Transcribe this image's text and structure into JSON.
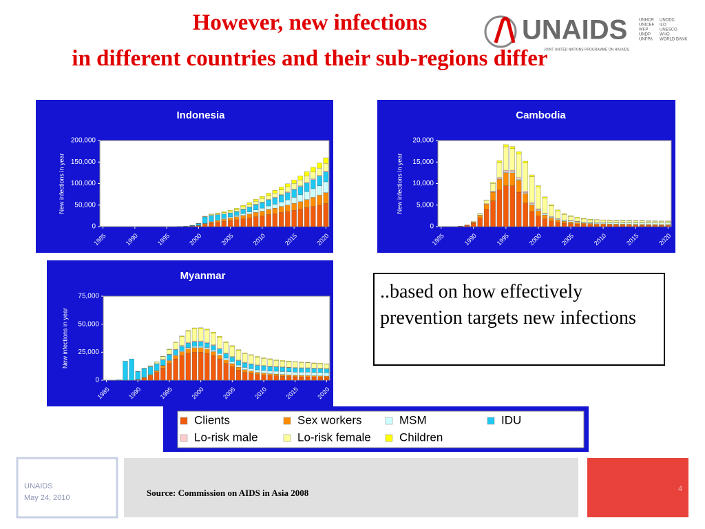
{
  "header": {
    "title_line1": "However, new infections",
    "title_line2": "in different countries and their sub-regions differ",
    "logo": "UNAIDS",
    "logo_sub": "JOINT UNITED NATIONS PROGRAMME ON HIV/AIDS",
    "cosponsors_1": [
      "UNHCR",
      "UNICEF",
      "WFP",
      "UNDP",
      "UNFPA"
    ],
    "cosponsors_2": [
      "UNODC",
      "ILO",
      "UNESCO",
      "WHO",
      "WORLD BANK"
    ]
  },
  "note": "..based on how effectively prevention targets new infections",
  "footer": {
    "org": "UNAIDS",
    "date": "May 24, 2010",
    "source": "Source: Commission on AIDS in Asia 2008",
    "page": "4"
  },
  "chart_data": [
    {
      "type": "stacked_bar",
      "title": "Indonesia",
      "ylabel": "New infections in year",
      "panel_color": "#1414d2",
      "x": [
        1985,
        1986,
        1987,
        1988,
        1989,
        1990,
        1991,
        1992,
        1993,
        1994,
        1995,
        1996,
        1997,
        1998,
        1999,
        2000,
        2001,
        2002,
        2003,
        2004,
        2005,
        2006,
        2007,
        2008,
        2009,
        2010,
        2011,
        2012,
        2013,
        2014,
        2015,
        2016,
        2017,
        2018,
        2019,
        2020
      ],
      "xticks": [
        1985,
        1990,
        1995,
        2000,
        2005,
        2010,
        2015,
        2020
      ],
      "ylim": [
        0,
        200000
      ],
      "yticks": [
        {
          "value": 0,
          "label": "0"
        },
        {
          "value": 50000,
          "label": "50,000"
        },
        {
          "value": 100000,
          "label": "100,000"
        },
        {
          "value": 150000,
          "label": "150,000"
        },
        {
          "value": 200000,
          "label": "200,000"
        }
      ],
      "series": [
        {
          "name": "Clients",
          "color": "#f05a0a",
          "values": [
            0,
            0,
            0,
            0,
            0,
            0,
            0,
            0,
            0,
            0,
            0,
            0,
            200,
            500,
            1000,
            2000,
            5000,
            8000,
            10000,
            12000,
            14000,
            16000,
            18000,
            20000,
            23000,
            25000,
            28000,
            30000,
            33000,
            35000,
            38000,
            41000,
            44000,
            47000,
            50000,
            54000
          ]
        },
        {
          "name": "Sex workers",
          "color": "#ff8c00",
          "values": [
            0,
            0,
            0,
            0,
            0,
            0,
            0,
            0,
            0,
            0,
            0,
            0,
            100,
            200,
            500,
            1000,
            2000,
            3000,
            4000,
            5000,
            6000,
            7000,
            8000,
            9000,
            10000,
            11000,
            12000,
            13000,
            14000,
            15000,
            16000,
            17000,
            19000,
            21000,
            23000,
            25000
          ]
        },
        {
          "name": "MSM",
          "color": "#ccffff",
          "values": [
            0,
            0,
            0,
            0,
            0,
            0,
            0,
            0,
            0,
            0,
            0,
            0,
            0,
            0,
            100,
            200,
            500,
            1000,
            1500,
            2000,
            2500,
            3000,
            4000,
            5000,
            6000,
            7000,
            8000,
            9000,
            10000,
            12000,
            14000,
            16000,
            18000,
            20000,
            22000,
            25000
          ]
        },
        {
          "name": "IDU",
          "color": "#1ec8f0",
          "values": [
            0,
            0,
            0,
            0,
            0,
            0,
            0,
            0,
            0,
            0,
            0,
            0,
            100,
            500,
            1000,
            4000,
            15000,
            14000,
            12000,
            10000,
            9000,
            9000,
            10000,
            11000,
            12000,
            13000,
            14000,
            15000,
            16000,
            17000,
            18000,
            19000,
            20000,
            21000,
            22000,
            23000
          ]
        },
        {
          "name": "Lo-risk male",
          "color": "#ffcccc",
          "values": [
            0,
            0,
            0,
            0,
            0,
            0,
            0,
            0,
            0,
            0,
            0,
            0,
            0,
            0,
            0,
            0,
            100,
            200,
            300,
            400,
            500,
            600,
            700,
            800,
            900,
            1000,
            1100,
            1200,
            1300,
            1400,
            1500,
            1600,
            1700,
            1800,
            1900,
            2000
          ]
        },
        {
          "name": "Lo-risk female",
          "color": "#ffff99",
          "values": [
            0,
            0,
            0,
            0,
            0,
            0,
            0,
            0,
            0,
            0,
            0,
            0,
            0,
            0,
            100,
            300,
            1000,
            2000,
            2500,
            3000,
            3500,
            4000,
            5000,
            6000,
            7000,
            8000,
            9000,
            10000,
            11000,
            12000,
            13000,
            14000,
            15000,
            16000,
            17000,
            18000
          ]
        },
        {
          "name": "Children",
          "color": "#ffff00",
          "values": [
            0,
            0,
            0,
            0,
            0,
            0,
            0,
            0,
            0,
            0,
            0,
            0,
            0,
            0,
            0,
            100,
            500,
            1000,
            1500,
            2000,
            2500,
            3000,
            3500,
            4000,
            4500,
            5000,
            5500,
            6000,
            6500,
            7000,
            8000,
            9000,
            10000,
            11000,
            12000,
            13000
          ]
        }
      ]
    },
    {
      "type": "stacked_bar",
      "title": "Cambodia",
      "ylabel": "New infections in year",
      "panel_color": "#1414d2",
      "x": [
        1985,
        1986,
        1987,
        1988,
        1989,
        1990,
        1991,
        1992,
        1993,
        1994,
        1995,
        1996,
        1997,
        1998,
        1999,
        2000,
        2001,
        2002,
        2003,
        2004,
        2005,
        2006,
        2007,
        2008,
        2009,
        2010,
        2011,
        2012,
        2013,
        2014,
        2015,
        2016,
        2017,
        2018,
        2019,
        2020
      ],
      "xticks": [
        1985,
        1990,
        1995,
        2000,
        2005,
        2010,
        2015,
        2020
      ],
      "ylim": [
        0,
        20000
      ],
      "yticks": [
        {
          "value": 0,
          "label": "0"
        },
        {
          "value": 5000,
          "label": "5,000"
        },
        {
          "value": 10000,
          "label": "10,000"
        },
        {
          "value": 15000,
          "label": "15,000"
        },
        {
          "value": 20000,
          "label": "20,000"
        }
      ],
      "series": [
        {
          "values": [
            0,
            0,
            0,
            100,
            300,
            800,
            2000,
            4000,
            6000,
            8500,
            9500,
            9500,
            8000,
            5500,
            3500,
            2500,
            1800,
            1300,
            1000,
            800,
            700,
            600,
            500,
            450,
            400,
            400,
            380,
            370,
            360,
            350,
            340,
            330,
            320,
            310,
            300,
            300
          ]
        },
        {
          "values": [
            0,
            0,
            0,
            50,
            100,
            300,
            600,
            1200,
            2000,
            2500,
            3000,
            3000,
            2800,
            2200,
            1600,
            1200,
            900,
            700,
            550,
            450,
            400,
            350,
            300,
            280,
            260,
            250,
            240,
            230,
            220,
            210,
            200,
            200,
            190,
            190,
            180,
            180
          ]
        },
        {
          "values": [
            0,
            0,
            0,
            0,
            0,
            0,
            0,
            0,
            50,
            100,
            150,
            200,
            200,
            200,
            200,
            200,
            200,
            200,
            200,
            200,
            200,
            200,
            200,
            200,
            250,
            260,
            270,
            280,
            290,
            300,
            310,
            320,
            330,
            340,
            350,
            360
          ]
        },
        {
          "values": [
            0,
            0,
            0,
            0,
            0,
            0,
            0,
            0,
            0,
            0,
            0,
            0,
            0,
            0,
            0,
            0,
            0,
            0,
            0,
            0,
            0,
            0,
            0,
            0,
            0,
            0,
            0,
            0,
            0,
            0,
            0,
            0,
            0,
            0,
            0,
            0
          ]
        },
        {
          "values": [
            0,
            0,
            0,
            0,
            0,
            0,
            50,
            100,
            200,
            300,
            400,
            400,
            400,
            350,
            300,
            250,
            200,
            150,
            120,
            100,
            90,
            80,
            70,
            60,
            60,
            60,
            55,
            55,
            50,
            50,
            50,
            50,
            45,
            45,
            40,
            40
          ]
        },
        {
          "values": [
            0,
            0,
            0,
            0,
            0,
            100,
            300,
            800,
            1800,
            3500,
            5500,
            5000,
            5500,
            6500,
            6000,
            5000,
            3500,
            2500,
            1800,
            1300,
            1000,
            800,
            700,
            600,
            550,
            500,
            480,
            460,
            440,
            420,
            400,
            400,
            390,
            380,
            370,
            360
          ]
        },
        {
          "values": [
            0,
            0,
            0,
            0,
            0,
            0,
            50,
            100,
            200,
            400,
            500,
            500,
            500,
            450,
            400,
            350,
            300,
            250,
            200,
            180,
            160,
            150,
            140,
            130,
            120,
            110,
            100,
            100,
            90,
            90,
            80,
            80,
            70,
            70,
            60,
            60
          ]
        }
      ]
    },
    {
      "type": "stacked_bar",
      "title": "Myanmar",
      "ylabel": "New infections in year",
      "panel_color": "#1414d2",
      "x": [
        1985,
        1986,
        1987,
        1988,
        1989,
        1990,
        1991,
        1992,
        1993,
        1994,
        1995,
        1996,
        1997,
        1998,
        1999,
        2000,
        2001,
        2002,
        2003,
        2004,
        2005,
        2006,
        2007,
        2008,
        2009,
        2010,
        2011,
        2012,
        2013,
        2014,
        2015,
        2016,
        2017,
        2018,
        2019,
        2020
      ],
      "xticks": [
        1985,
        1990,
        1995,
        2000,
        2005,
        2010,
        2015,
        2020
      ],
      "ylim": [
        0,
        75000
      ],
      "yticks": [
        {
          "value": 0,
          "label": "0"
        },
        {
          "value": 25000,
          "label": "25,000"
        },
        {
          "value": 50000,
          "label": "50,000"
        },
        {
          "value": 75000,
          "label": "75,000"
        }
      ],
      "series": [
        {
          "values": [
            0,
            0,
            0,
            0,
            0,
            500,
            2000,
            4000,
            7000,
            11000,
            15000,
            19000,
            22000,
            24000,
            25000,
            25000,
            24000,
            22000,
            19000,
            15000,
            12000,
            9000,
            7000,
            6000,
            5000,
            4500,
            4000,
            3800,
            3500,
            3300,
            3100,
            3000,
            2900,
            2800,
            2700,
            2600
          ]
        },
        {
          "values": [
            0,
            0,
            0,
            0,
            0,
            200,
            500,
            1000,
            1500,
            2000,
            2500,
            3000,
            3500,
            4000,
            4000,
            4000,
            3800,
            3500,
            3200,
            3000,
            2800,
            2600,
            2400,
            2200,
            2000,
            1900,
            1800,
            1700,
            1600,
            1500,
            1400,
            1300,
            1300,
            1200,
            1200,
            1100
          ]
        },
        {
          "values": [
            0,
            0,
            0,
            0,
            0,
            0,
            0,
            0,
            100,
            200,
            400,
            600,
            800,
            1000,
            1200,
            1300,
            1400,
            1500,
            1600,
            1700,
            1800,
            1900,
            2000,
            2100,
            2200,
            2300,
            2400,
            2500,
            2600,
            2700,
            2800,
            2900,
            3000,
            3000,
            3000,
            3000
          ]
        },
        {
          "values": [
            0,
            0,
            500,
            17000,
            19000,
            7000,
            8000,
            7000,
            6000,
            5000,
            5000,
            4500,
            4000,
            4000,
            4000,
            4000,
            4000,
            4000,
            4000,
            4000,
            4000,
            4000,
            4000,
            4000,
            4000,
            4000,
            4000,
            3800,
            3800,
            3700,
            3600,
            3500,
            3500,
            3400,
            3400,
            3300
          ]
        },
        {
          "values": [
            0,
            0,
            0,
            0,
            0,
            0,
            0,
            100,
            200,
            300,
            400,
            500,
            600,
            700,
            700,
            700,
            700,
            600,
            600,
            500,
            500,
            500,
            400,
            400,
            400,
            400,
            400,
            400,
            400,
            400,
            400,
            400,
            400,
            400,
            400,
            400
          ]
        },
        {
          "values": [
            0,
            0,
            0,
            0,
            0,
            100,
            300,
            700,
            1500,
            2500,
            4000,
            6000,
            8000,
            10000,
            11000,
            11000,
            11000,
            10500,
            10000,
            9500,
            9000,
            8500,
            8000,
            7500,
            7000,
            6500,
            6000,
            5500,
            5200,
            5000,
            4800,
            4600,
            4400,
            4200,
            4000,
            3900
          ]
        },
        {
          "values": [
            0,
            0,
            0,
            0,
            0,
            0,
            0,
            100,
            200,
            300,
            400,
            500,
            600,
            700,
            800,
            800,
            800,
            800,
            800,
            700,
            700,
            700,
            600,
            600,
            600,
            500,
            500,
            500,
            500,
            500,
            500,
            500,
            400,
            400,
            400,
            400
          ]
        }
      ]
    }
  ]
}
